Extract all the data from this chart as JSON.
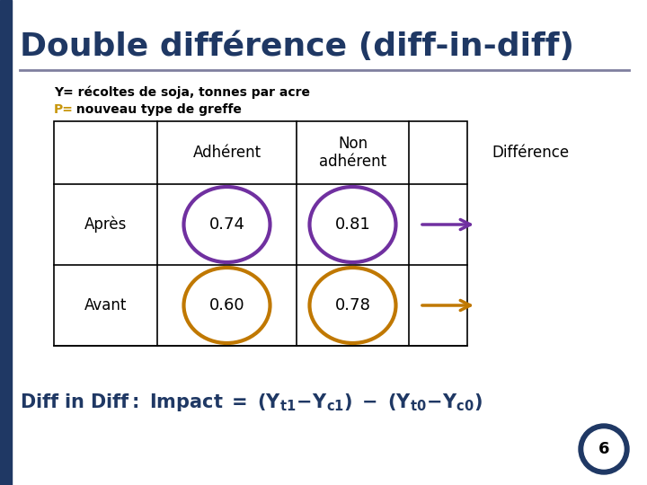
{
  "title": "Double différence (diff-in-diff)",
  "title_color": "#1F3864",
  "subtitle_line1": "Y= récoltes de soja, tonnes par acre",
  "subtitle_line2_P": "P=",
  "subtitle_line2_rest": " nouveau type de greffe",
  "subtitle_P_color": "#C8960C",
  "ellipse_color_apres": "#7030A0",
  "ellipse_color_avant": "#C07800",
  "arrow_color_apres": "#7030A0",
  "arrow_color_avant": "#C07800",
  "footer_color": "#1F3864",
  "background_color": "#FFFFFF",
  "left_bar_color": "#1F3864",
  "separator_color": "#7F7F9F",
  "circle_badge": 6,
  "values_row1": [
    "0.74",
    "0.81"
  ],
  "values_row2": [
    "0.60",
    "0.78"
  ]
}
